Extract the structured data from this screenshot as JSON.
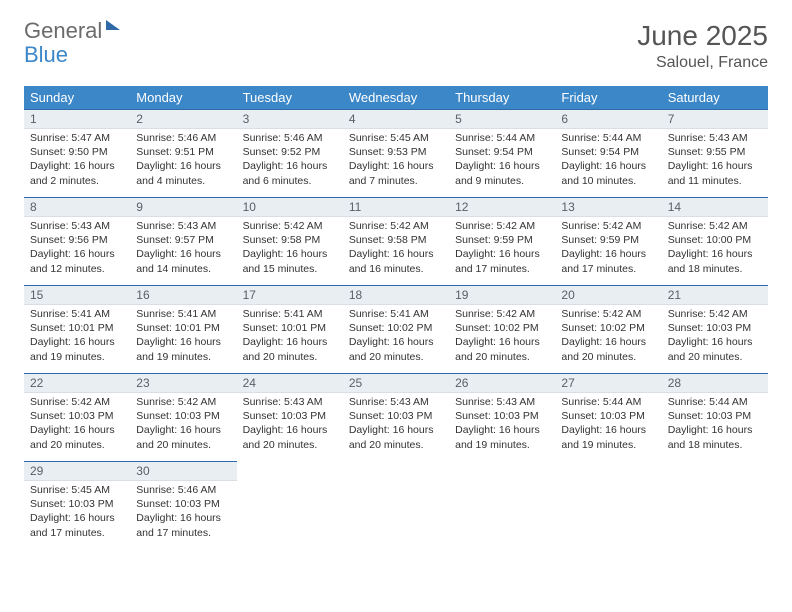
{
  "logo": {
    "part1": "General",
    "part2": "Blue"
  },
  "header": {
    "title": "June 2025",
    "location": "Salouel, France"
  },
  "calendar": {
    "type": "table",
    "background_color": "#ffffff",
    "header_bg": "#3b87c8",
    "header_text_color": "#ffffff",
    "border_color": "#2f6aa8",
    "daynum_bg": "#e9eef2",
    "columns": [
      "Sunday",
      "Monday",
      "Tuesday",
      "Wednesday",
      "Thursday",
      "Friday",
      "Saturday"
    ],
    "days": [
      {
        "n": "1",
        "sr": "Sunrise: 5:47 AM",
        "ss": "Sunset: 9:50 PM",
        "dl": "Daylight: 16 hours and 2 minutes."
      },
      {
        "n": "2",
        "sr": "Sunrise: 5:46 AM",
        "ss": "Sunset: 9:51 PM",
        "dl": "Daylight: 16 hours and 4 minutes."
      },
      {
        "n": "3",
        "sr": "Sunrise: 5:46 AM",
        "ss": "Sunset: 9:52 PM",
        "dl": "Daylight: 16 hours and 6 minutes."
      },
      {
        "n": "4",
        "sr": "Sunrise: 5:45 AM",
        "ss": "Sunset: 9:53 PM",
        "dl": "Daylight: 16 hours and 7 minutes."
      },
      {
        "n": "5",
        "sr": "Sunrise: 5:44 AM",
        "ss": "Sunset: 9:54 PM",
        "dl": "Daylight: 16 hours and 9 minutes."
      },
      {
        "n": "6",
        "sr": "Sunrise: 5:44 AM",
        "ss": "Sunset: 9:54 PM",
        "dl": "Daylight: 16 hours and 10 minutes."
      },
      {
        "n": "7",
        "sr": "Sunrise: 5:43 AM",
        "ss": "Sunset: 9:55 PM",
        "dl": "Daylight: 16 hours and 11 minutes."
      },
      {
        "n": "8",
        "sr": "Sunrise: 5:43 AM",
        "ss": "Sunset: 9:56 PM",
        "dl": "Daylight: 16 hours and 12 minutes."
      },
      {
        "n": "9",
        "sr": "Sunrise: 5:43 AM",
        "ss": "Sunset: 9:57 PM",
        "dl": "Daylight: 16 hours and 14 minutes."
      },
      {
        "n": "10",
        "sr": "Sunrise: 5:42 AM",
        "ss": "Sunset: 9:58 PM",
        "dl": "Daylight: 16 hours and 15 minutes."
      },
      {
        "n": "11",
        "sr": "Sunrise: 5:42 AM",
        "ss": "Sunset: 9:58 PM",
        "dl": "Daylight: 16 hours and 16 minutes."
      },
      {
        "n": "12",
        "sr": "Sunrise: 5:42 AM",
        "ss": "Sunset: 9:59 PM",
        "dl": "Daylight: 16 hours and 17 minutes."
      },
      {
        "n": "13",
        "sr": "Sunrise: 5:42 AM",
        "ss": "Sunset: 9:59 PM",
        "dl": "Daylight: 16 hours and 17 minutes."
      },
      {
        "n": "14",
        "sr": "Sunrise: 5:42 AM",
        "ss": "Sunset: 10:00 PM",
        "dl": "Daylight: 16 hours and 18 minutes."
      },
      {
        "n": "15",
        "sr": "Sunrise: 5:41 AM",
        "ss": "Sunset: 10:01 PM",
        "dl": "Daylight: 16 hours and 19 minutes."
      },
      {
        "n": "16",
        "sr": "Sunrise: 5:41 AM",
        "ss": "Sunset: 10:01 PM",
        "dl": "Daylight: 16 hours and 19 minutes."
      },
      {
        "n": "17",
        "sr": "Sunrise: 5:41 AM",
        "ss": "Sunset: 10:01 PM",
        "dl": "Daylight: 16 hours and 20 minutes."
      },
      {
        "n": "18",
        "sr": "Sunrise: 5:41 AM",
        "ss": "Sunset: 10:02 PM",
        "dl": "Daylight: 16 hours and 20 minutes."
      },
      {
        "n": "19",
        "sr": "Sunrise: 5:42 AM",
        "ss": "Sunset: 10:02 PM",
        "dl": "Daylight: 16 hours and 20 minutes."
      },
      {
        "n": "20",
        "sr": "Sunrise: 5:42 AM",
        "ss": "Sunset: 10:02 PM",
        "dl": "Daylight: 16 hours and 20 minutes."
      },
      {
        "n": "21",
        "sr": "Sunrise: 5:42 AM",
        "ss": "Sunset: 10:03 PM",
        "dl": "Daylight: 16 hours and 20 minutes."
      },
      {
        "n": "22",
        "sr": "Sunrise: 5:42 AM",
        "ss": "Sunset: 10:03 PM",
        "dl": "Daylight: 16 hours and 20 minutes."
      },
      {
        "n": "23",
        "sr": "Sunrise: 5:42 AM",
        "ss": "Sunset: 10:03 PM",
        "dl": "Daylight: 16 hours and 20 minutes."
      },
      {
        "n": "24",
        "sr": "Sunrise: 5:43 AM",
        "ss": "Sunset: 10:03 PM",
        "dl": "Daylight: 16 hours and 20 minutes."
      },
      {
        "n": "25",
        "sr": "Sunrise: 5:43 AM",
        "ss": "Sunset: 10:03 PM",
        "dl": "Daylight: 16 hours and 20 minutes."
      },
      {
        "n": "26",
        "sr": "Sunrise: 5:43 AM",
        "ss": "Sunset: 10:03 PM",
        "dl": "Daylight: 16 hours and 19 minutes."
      },
      {
        "n": "27",
        "sr": "Sunrise: 5:44 AM",
        "ss": "Sunset: 10:03 PM",
        "dl": "Daylight: 16 hours and 19 minutes."
      },
      {
        "n": "28",
        "sr": "Sunrise: 5:44 AM",
        "ss": "Sunset: 10:03 PM",
        "dl": "Daylight: 16 hours and 18 minutes."
      },
      {
        "n": "29",
        "sr": "Sunrise: 5:45 AM",
        "ss": "Sunset: 10:03 PM",
        "dl": "Daylight: 16 hours and 17 minutes."
      },
      {
        "n": "30",
        "sr": "Sunrise: 5:46 AM",
        "ss": "Sunset: 10:03 PM",
        "dl": "Daylight: 16 hours and 17 minutes."
      }
    ]
  }
}
